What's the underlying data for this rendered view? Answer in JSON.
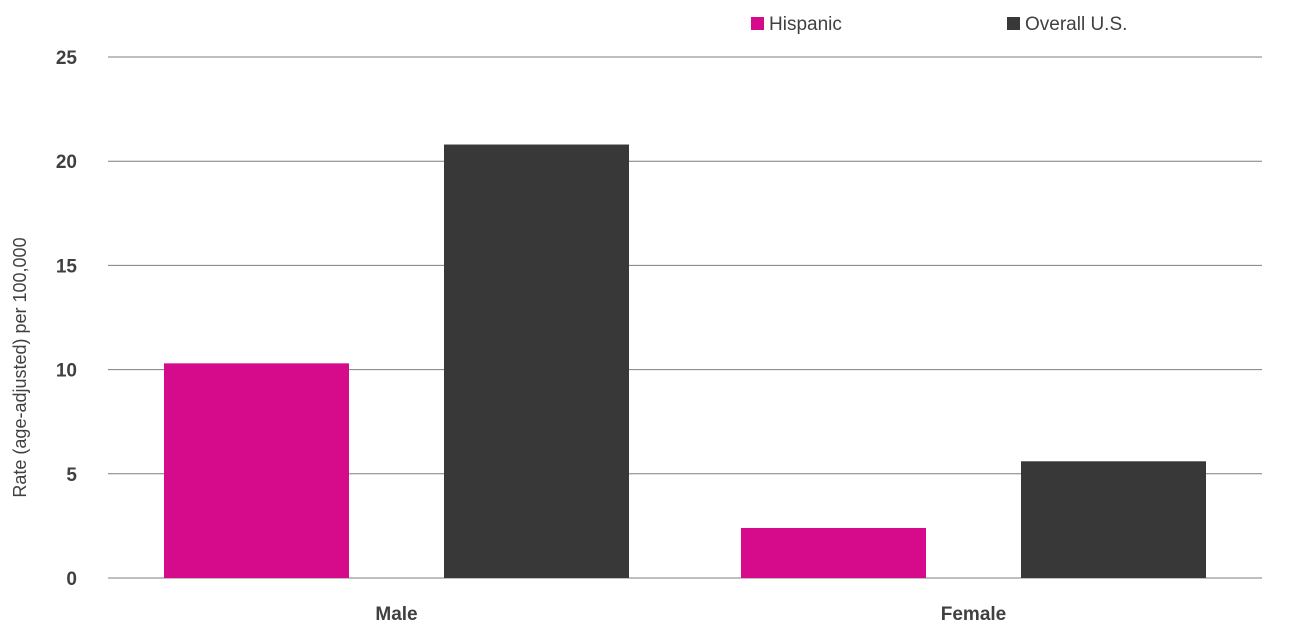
{
  "chart_data": {
    "type": "bar",
    "categories": [
      "Male",
      "Female"
    ],
    "series": [
      {
        "name": "Hispanic",
        "values": [
          10.3,
          2.4
        ],
        "color": "#D60B8C"
      },
      {
        "name": "Overall U.S.",
        "values": [
          20.8,
          5.6
        ],
        "color": "#383838"
      }
    ],
    "title": "",
    "xlabel": "",
    "ylabel": "Rate (age-adjusted) per 100,000",
    "ylim": [
      0,
      25
    ],
    "yticks": [
      0,
      5,
      10,
      15,
      20,
      25
    ],
    "grid": true,
    "legend_position": "top-right"
  }
}
